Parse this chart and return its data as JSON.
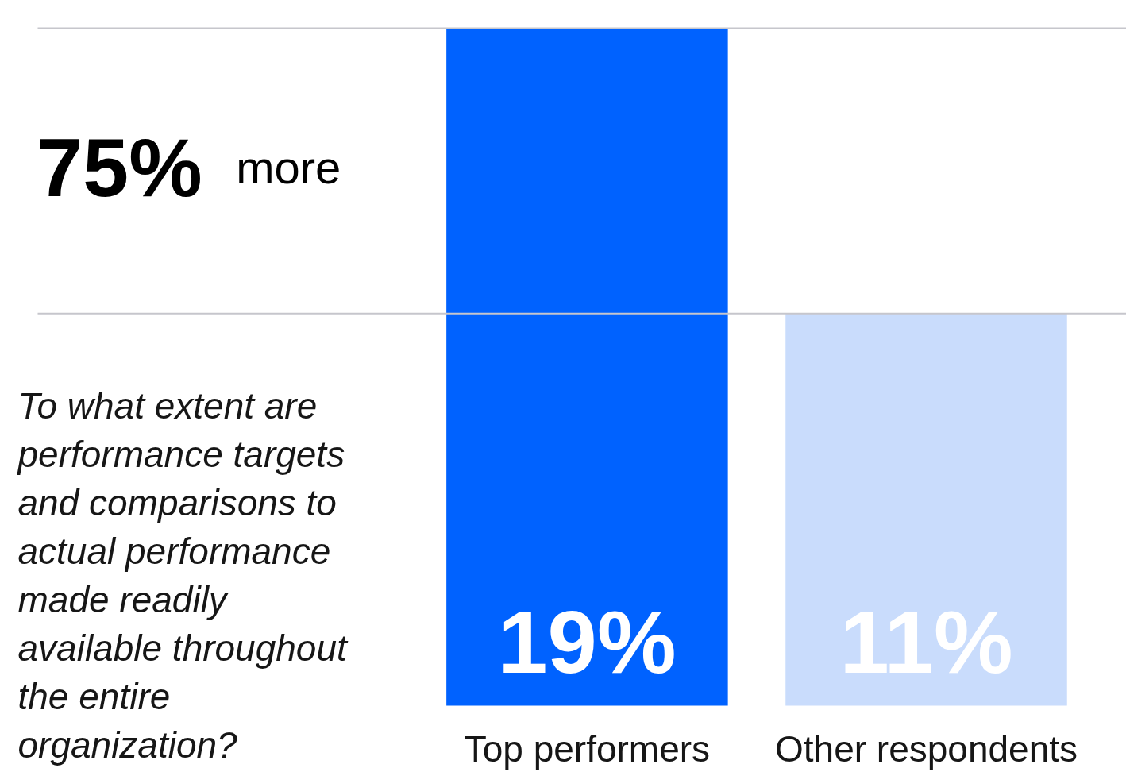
{
  "chart_data": {
    "type": "bar",
    "categories": [
      "Top performers",
      "Other respondents"
    ],
    "colors": [
      "#0062ff",
      "#c9dcfc"
    ],
    "values": [
      19,
      11
    ],
    "value_labels": [
      "19%",
      "11%"
    ],
    "annotations": [
      "75% more",
      "To what extent are performance targets and comparisons to actual performance made readily available throughout the entire organization?"
    ],
    "ref_lines": [
      {
        "axis": "y",
        "value": 19,
        "color": "#c6c6cc"
      },
      {
        "axis": "y",
        "value": 11,
        "color": "#c6c6cc"
      }
    ],
    "grid": false
  }
}
